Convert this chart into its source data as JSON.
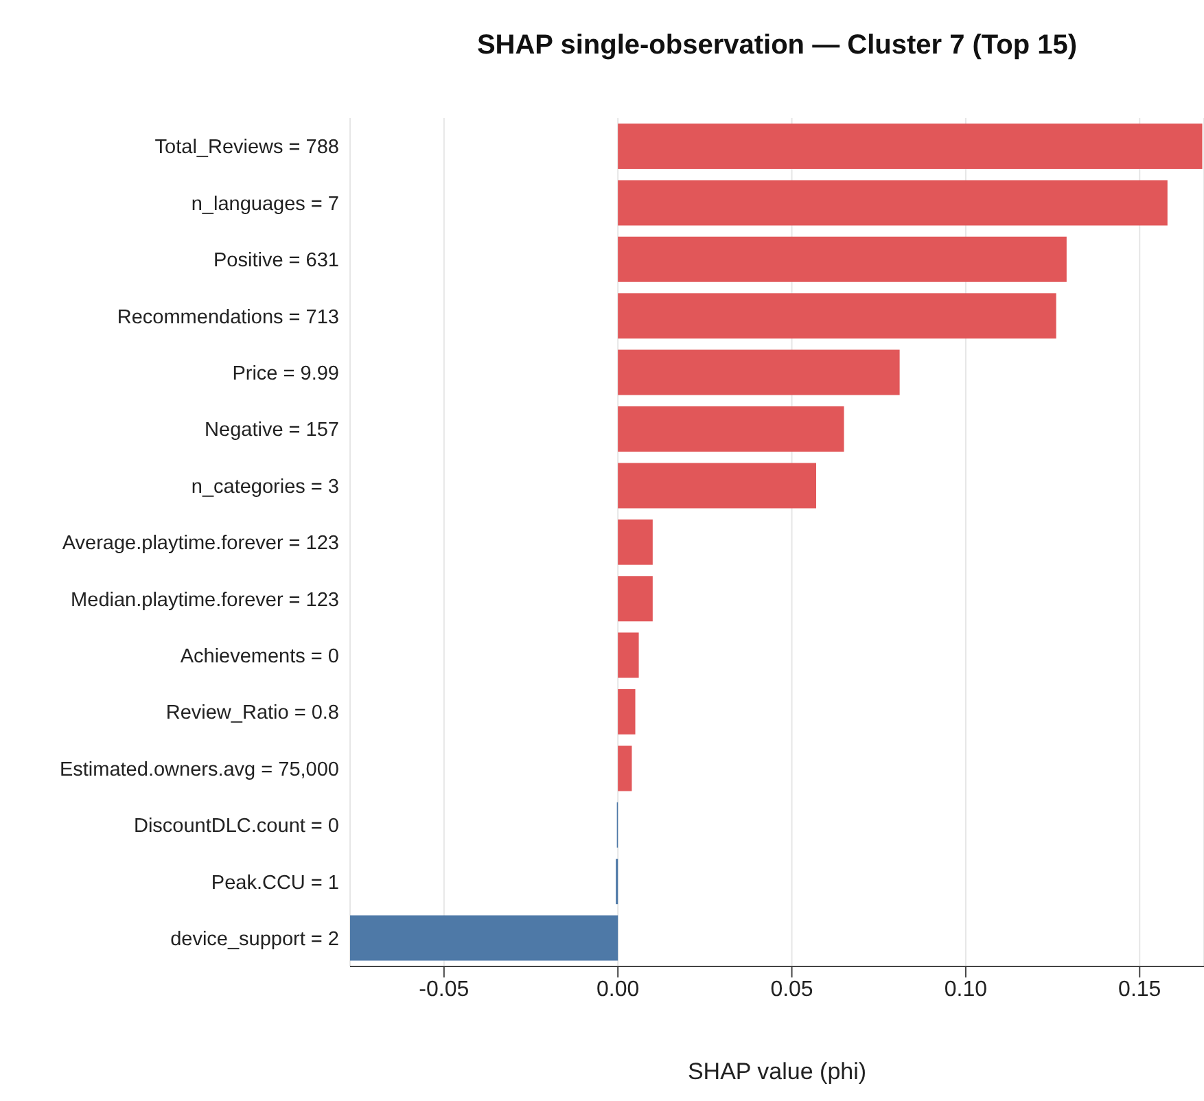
{
  "chart_data": {
    "type": "bar",
    "orientation": "horizontal",
    "title": "SHAP single-observation — Cluster 7 (Top 15)",
    "xlabel": "SHAP value (phi)",
    "categories": [
      "Total_Reviews = 788",
      "n_languages = 7",
      "Positive = 631",
      "Recommendations = 713",
      "Price = 9.99",
      "Negative = 157",
      "n_categories = 3",
      "Average.playtime.forever = 123",
      "Median.playtime.forever = 123",
      "Achievements = 0",
      "Review_Ratio = 0.8",
      "Estimated.owners.avg = 75,000",
      "DiscountDLC.count = 0",
      "Peak.CCU = 1",
      "device_support = 2"
    ],
    "values": [
      0.168,
      0.158,
      0.129,
      0.126,
      0.081,
      0.065,
      0.057,
      0.01,
      0.01,
      0.006,
      0.005,
      0.004,
      -0.0003,
      -0.0006,
      -0.077
    ],
    "colors": [
      "#e15759",
      "#e15759",
      "#e15759",
      "#e15759",
      "#e15759",
      "#e15759",
      "#e15759",
      "#e15759",
      "#e15759",
      "#e15759",
      "#e15759",
      "#e15759",
      "#4e79a7",
      "#4e79a7",
      "#4e79a7"
    ],
    "xlim": [
      -0.077,
      0.1685
    ],
    "xticks": [
      {
        "value": -0.05,
        "label": "-0.05"
      },
      {
        "value": 0,
        "label": "0.00"
      },
      {
        "value": 0.05,
        "label": "0.05"
      },
      {
        "value": 0.1,
        "label": "0.10"
      },
      {
        "value": 0.15,
        "label": "0.15"
      }
    ],
    "grid": "x",
    "legend": false
  }
}
